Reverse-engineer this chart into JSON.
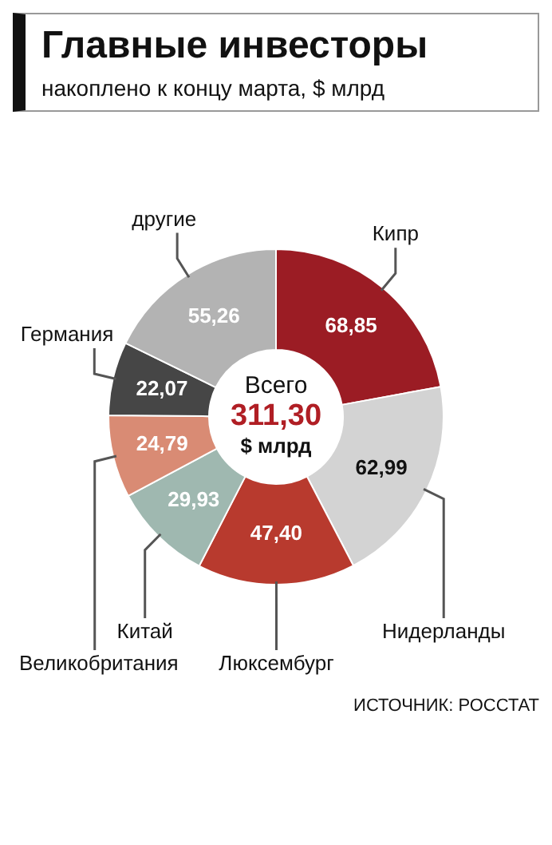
{
  "chart_data": {
    "type": "donut",
    "title": "Главные инвесторы",
    "subtitle": "накоплено к концу марта, $ млрд",
    "categories": [
      "Кипр",
      "Нидерланды",
      "Люксембург",
      "Китай",
      "Великобритания",
      "Германия",
      "другие"
    ],
    "values": [
      68.85,
      62.99,
      47.4,
      29.93,
      24.79,
      22.07,
      55.26
    ],
    "colors": [
      "#9b1c24",
      "#d3d3d3",
      "#b83a2e",
      "#9fb8b0",
      "#d98b74",
      "#464646",
      "#b3b3b3"
    ],
    "value_labels": [
      "68,85",
      "62,99",
      "47,40",
      "29,93",
      "24,79",
      "22,07",
      "55,26"
    ],
    "annotations": [
      "Всего",
      "311,30",
      "$ млрд",
      "ИСТОЧНИК: РОССТАТ"
    ],
    "legend": false
  }
}
